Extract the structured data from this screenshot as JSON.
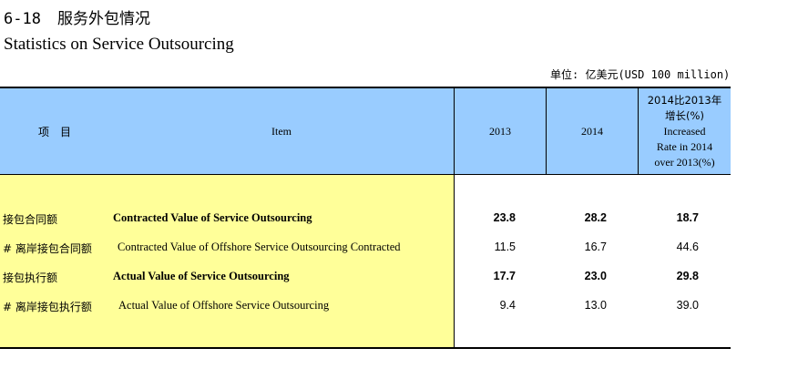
{
  "title": {
    "number": "6-18",
    "cn": "服务外包情况",
    "en": "Statistics on Service Outsourcing"
  },
  "unit": "单位: 亿美元(USD 100 million)",
  "headers": {
    "item_cn": "项　目",
    "item_en": "Item",
    "y2013": "2013",
    "y2014": "2014",
    "rate_line1": "2014比2013年",
    "rate_line2": "增长(%)",
    "rate_line3": "Increased",
    "rate_line4": "Rate in 2014",
    "rate_line5": "over 2013(%)"
  },
  "rows": [
    {
      "cn": "接包合同额",
      "en": "Contracted Value of Service Outsourcing",
      "v2013": "23.8",
      "v2014": "28.2",
      "rate": "18.7",
      "bold": true
    },
    {
      "cn": "#  离岸接包合同额",
      "en": "Contracted Value of Offshore Service Outsourcing Contracted",
      "v2013": "11.5",
      "v2014": "16.7",
      "rate": "44.6",
      "bold": false
    },
    {
      "cn": "接包执行额",
      "en": "Actual Value of Service Outsourcing",
      "v2013": "17.7",
      "v2014": "23.0",
      "rate": "29.8",
      "bold": true
    },
    {
      "cn": "#  离岸接包执行额",
      "en": "Actual Value of Offshore Service Outsourcing",
      "v2013": "9.4",
      "v2014": "13.0",
      "rate": "39.0",
      "bold": false
    }
  ]
}
